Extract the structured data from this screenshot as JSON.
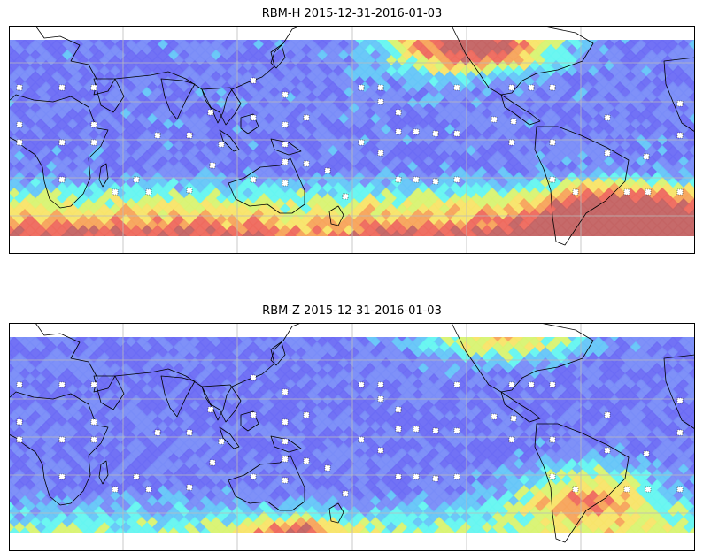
{
  "maps": [
    {
      "id": "rbm-h",
      "title": "RBM-H 2015-12-31-2016-01-03",
      "field": "high_south_and_east_pacific"
    },
    {
      "id": "rbm-z",
      "title": "RBM-Z 2015-12-31-2016-01-03",
      "field": "moderate_south_and_east_pacific"
    }
  ],
  "colormap": {
    "name": "jet-like",
    "colors": [
      "#6c6cf5",
      "#7a8cf8",
      "#66c6f8",
      "#66f6f0",
      "#d8f472",
      "#f8e46a",
      "#f7a45c",
      "#ee6a5e",
      "#c46464"
    ]
  },
  "coastline_color": "#000000",
  "gridline_color": "#bbbbbb",
  "station_marker": "white-dotted-square",
  "legend": null
}
